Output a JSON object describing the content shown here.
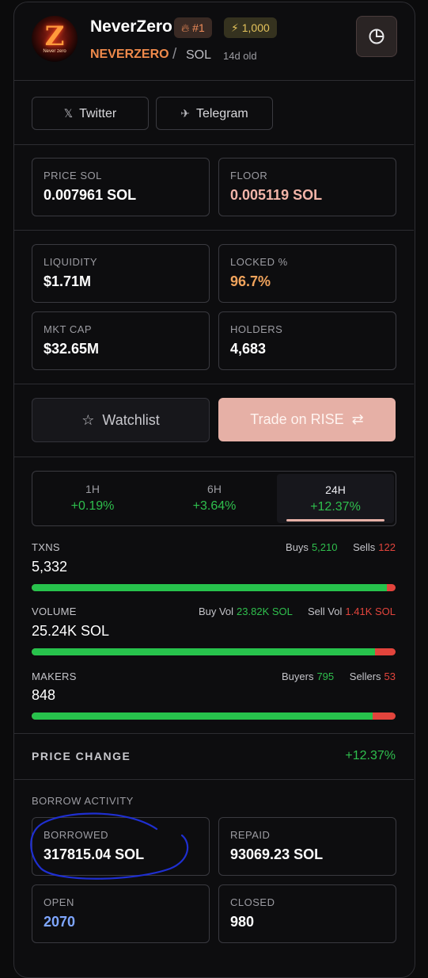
{
  "token": {
    "name": "NeverZero",
    "logo_text": "Never zero",
    "rank_badge": "#1",
    "bolt_badge": "1,000",
    "ticker": "NEVERZERO",
    "separator": "/",
    "chain": "SOL",
    "age": "14d old"
  },
  "social": {
    "twitter_icon": "𝕏",
    "twitter_label": "Twitter",
    "telegram_icon": "✈",
    "telegram_label": "Telegram"
  },
  "stats": {
    "price": {
      "label": "PRICE SOL",
      "value": "0.007961 SOL"
    },
    "floor": {
      "label": "FLOOR",
      "value": "0.005119 SOL"
    },
    "liquidity": {
      "label": "LIQUIDITY",
      "value": "$1.71M"
    },
    "locked": {
      "label": "LOCKED %",
      "value": "96.7%"
    },
    "mktcap": {
      "label": "MKT CAP",
      "value": "$32.65M"
    },
    "holders": {
      "label": "HOLDERS",
      "value": "4,683"
    }
  },
  "actions": {
    "watchlist_icon": "☆",
    "watchlist_label": "Watchlist",
    "trade_label": "Trade on RISE",
    "trade_icon": "⇄"
  },
  "periods": [
    {
      "label": "1H",
      "change": "+0.19%"
    },
    {
      "label": "6H",
      "change": "+3.64%"
    },
    {
      "label": "24H",
      "change": "+12.37%",
      "active": true
    }
  ],
  "metrics": {
    "txns": {
      "label": "TXNS",
      "value": "5,332",
      "left_label": "Buys",
      "left_value": "5,210",
      "right_label": "Sells",
      "right_value": "122",
      "buy_fraction": 0.977
    },
    "volume": {
      "label": "VOLUME",
      "value": "25.24K SOL",
      "left_label": "Buy Vol",
      "left_value": "23.82K SOL",
      "right_label": "Sell Vol",
      "right_value": "1.41K SOL",
      "buy_fraction": 0.944
    },
    "makers": {
      "label": "MAKERS",
      "value": "848",
      "left_label": "Buyers",
      "left_value": "795",
      "right_label": "Sellers",
      "right_value": "53",
      "buy_fraction": 0.938
    }
  },
  "price_change": {
    "label": "PRICE CHANGE",
    "value": "+12.37%"
  },
  "borrow": {
    "section_label": "BORROW ACTIVITY",
    "borrowed": {
      "label": "BORROWED",
      "value": "317815.04 SOL"
    },
    "repaid": {
      "label": "REPAID",
      "value": "93069.23 SOL"
    },
    "open": {
      "label": "OPEN",
      "value": "2070"
    },
    "closed": {
      "label": "CLOSED",
      "value": "980"
    }
  },
  "colors": {
    "accent_orange": "#ef8a4b",
    "floor_pink": "#f2b4a8",
    "locked_orange": "#f0a35c",
    "green": "#2fbf4d",
    "red": "#e2443c",
    "open_blue": "#7ea6ff",
    "trade_button": "#e6b0a6",
    "annotation_blue": "#1f2fd1"
  }
}
